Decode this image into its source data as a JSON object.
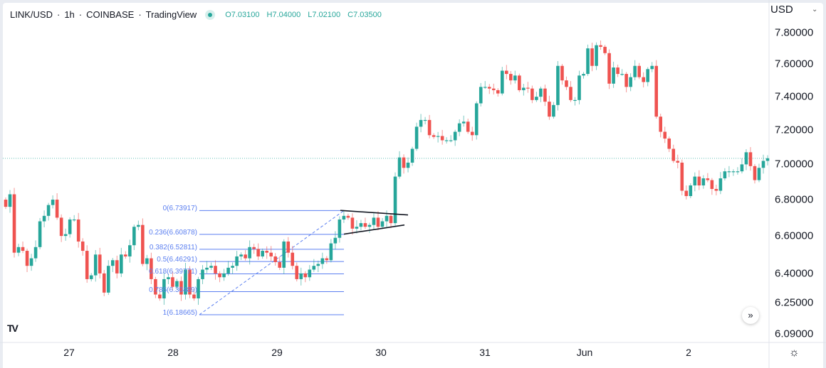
{
  "header": {
    "symbol": "LINK/USD",
    "interval": "1h",
    "exchange": "COINBASE",
    "source": "TradingView",
    "open": "O7.03100",
    "high": "H7.04000",
    "low": "L7.02100",
    "close": "C7.03500",
    "status_color": "#26a69a"
  },
  "price_axis": {
    "currency": "USD",
    "ticks": [
      "7.80000",
      "7.60000",
      "7.40000",
      "7.20000",
      "7.00000",
      "6.80000",
      "6.60000",
      "6.40000",
      "6.25000",
      "6.09000"
    ],
    "scale": "log"
  },
  "time_axis": {
    "ticks": [
      "27",
      "28",
      "29",
      "30",
      "31",
      "Jun",
      "2"
    ]
  },
  "icons": {
    "settings": "gear-icon",
    "scroll": "double-chevron-right-icon",
    "logo": "tradingview-logo"
  },
  "controls": {
    "scroll_label": "»",
    "gear_label": "☼",
    "logo_text": "TV",
    "caret": "⌄"
  },
  "colors": {
    "up": "#26a69a",
    "down": "#ef5350",
    "fib": "#5b7ff0",
    "trendline": "#131722"
  },
  "chart_data": {
    "type": "candlestick",
    "title": "LINK/USD · 1h · COINBASE",
    "ylim": [
      6.09,
      7.8
    ],
    "y_scale": "log",
    "grid": false,
    "first_open": 6.8,
    "closes": [
      6.76,
      6.83,
      6.51,
      6.54,
      6.52,
      6.44,
      6.48,
      6.54,
      6.68,
      6.71,
      6.77,
      6.8,
      6.7,
      6.6,
      6.61,
      6.69,
      6.69,
      6.57,
      6.52,
      6.37,
      6.39,
      6.5,
      6.4,
      6.3,
      6.44,
      6.47,
      6.4,
      6.5,
      6.49,
      6.55,
      6.65,
      6.66,
      6.45,
      6.48,
      6.37,
      6.29,
      6.27,
      6.37,
      6.38,
      6.33,
      6.36,
      6.29,
      6.42,
      6.29,
      6.27,
      6.37,
      6.42,
      6.43,
      6.44,
      6.4,
      6.38,
      6.4,
      6.43,
      6.44,
      6.49,
      6.5,
      6.48,
      6.54,
      6.53,
      6.49,
      6.52,
      6.51,
      6.49,
      6.46,
      6.43,
      6.57,
      6.51,
      6.44,
      6.37,
      6.4,
      6.38,
      6.42,
      6.44,
      6.45,
      6.48,
      6.47,
      6.56,
      6.59,
      6.69,
      6.71,
      6.7,
      6.64,
      6.65,
      6.67,
      6.65,
      6.66,
      6.7,
      6.65,
      6.68,
      6.71,
      6.67,
      6.93,
      7.04,
      6.98,
      7.01,
      7.09,
      7.22,
      7.26,
      7.26,
      7.17,
      7.16,
      7.165,
      7.14,
      7.14,
      7.14,
      7.19,
      7.24,
      7.25,
      7.19,
      7.17,
      7.36,
      7.46,
      7.46,
      7.45,
      7.44,
      7.42,
      7.56,
      7.54,
      7.5,
      7.53,
      7.44,
      7.455,
      7.45,
      7.38,
      7.4,
      7.45,
      7.37,
      7.28,
      7.35,
      7.59,
      7.5,
      7.46,
      7.38,
      7.38,
      7.53,
      7.54,
      7.7,
      7.59,
      7.72,
      7.71,
      7.67,
      7.48,
      7.58,
      7.54,
      7.54,
      7.46,
      7.52,
      7.59,
      7.52,
      7.49,
      7.57,
      7.59,
      7.28,
      7.19,
      7.15,
      7.09,
      7.02,
      7.01,
      6.85,
      6.82,
      6.88,
      6.93,
      6.88,
      6.92,
      6.91,
      6.86,
      6.85,
      6.92,
      6.96,
      6.96,
      6.96,
      6.96,
      7.0,
      7.07,
      6.99,
      6.91,
      6.98,
      7.02,
      7.035
    ],
    "last_price": 7.035,
    "fibonacci": [
      {
        "label": "0(6.73917)",
        "price": 6.73917
      },
      {
        "label": "0.236(6.60878)",
        "price": 6.60878
      },
      {
        "label": "0.382(6.52811)",
        "price": 6.52811
      },
      {
        "label": "0.5(6.46291)",
        "price": 6.46291
      },
      {
        "label": "0.618(6.39771)",
        "price": 6.39771
      },
      {
        "label": "0.786(6.30489)",
        "price": 6.30489
      },
      {
        "label": "1(6.18665)",
        "price": 6.18665
      }
    ],
    "triangle": {
      "upper": [
        6.74,
        6.715
      ],
      "lower": [
        6.61,
        6.66
      ]
    }
  }
}
